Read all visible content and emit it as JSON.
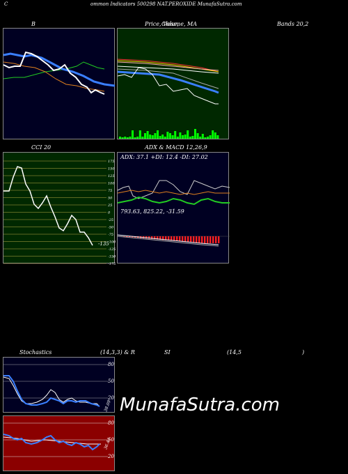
{
  "header": {
    "text": "ommon  Indicators 500298  NAT.PEROXIDE MunafaSutra.com",
    "c_mark": "C"
  },
  "titles": {
    "bollinger_b": "B",
    "price_volume_ma": "Price,  Volume,  MA",
    "price_overlap": "Close,",
    "bands": "Bands 20,2",
    "cci": "CCI 20",
    "adx_macd": "ADX  & MACD 12,26,9",
    "stoch_left": "Stochastics",
    "stoch_mid": "(14,3,3) & R",
    "stoch_si": "SI",
    "stoch_params": "(14,5",
    "stoch_close": ")"
  },
  "adx_readout": "ADX: 37.1  +DI: 12.4  -DI: 27.02",
  "macd_readout": "793.63,  825.22,  -31.59",
  "watermark": "MunafaSutra.com",
  "cci_ticks": [
    "175",
    "150",
    "125",
    "100",
    "75",
    "50",
    "25",
    "0",
    "-25",
    "-50",
    "-75",
    "-100",
    "-125",
    "-150",
    "-175"
  ],
  "cci_last": "-135",
  "stoch_ticks": [
    "80",
    "50",
    "20"
  ],
  "stoch_last": "38.09",
  "rsi_ticks": [
    "80",
    "50",
    "20"
  ],
  "rsi_last": "36.44",
  "colors": {
    "panel_navy": "#000022",
    "panel_green": "#002800",
    "rsi_red": "#8b0000",
    "volume_green": "#00ff00",
    "line_blue": "#3a7fff",
    "line_orange": "#e0801e",
    "line_green": "#22cc22"
  },
  "chart_data": [
    {
      "type": "line",
      "title": "B",
      "series": [
        {
          "values": [
            72,
            75,
            74,
            70,
            68,
            66,
            60,
            58,
            56,
            54,
            52,
            50,
            48,
            47,
            46,
            45
          ]
        },
        {
          "values": [
            80,
            82,
            83,
            82,
            80,
            78,
            70,
            64,
            58,
            55,
            53,
            51,
            50,
            49,
            48,
            47
          ]
        },
        {
          "values": [
            58,
            57,
            56,
            55,
            54,
            52,
            50,
            46,
            42,
            40,
            38,
            36,
            35,
            34,
            33,
            32
          ]
        },
        {
          "values": [
            62,
            60,
            65,
            80,
            84,
            75,
            72,
            60,
            57,
            56,
            50,
            46,
            44,
            38,
            35,
            36
          ]
        }
      ]
    },
    {
      "type": "bar",
      "title": "Volume",
      "values": [
        3,
        2,
        3,
        2,
        3,
        12,
        2,
        3,
        12,
        3,
        8,
        11,
        6,
        5,
        8,
        12,
        4,
        6,
        3,
        10,
        8,
        5,
        11,
        3,
        9,
        5,
        6,
        12,
        3,
        4,
        14,
        8,
        3,
        7,
        2,
        3,
        5,
        12,
        9,
        5
      ]
    },
    {
      "type": "line",
      "title": "CCI 20",
      "series": [
        {
          "values": [
            80,
            80,
            120,
            140,
            140,
            80,
            60,
            20,
            0,
            -10,
            10,
            50,
            20,
            -20,
            -40,
            -60,
            -40,
            -10,
            -100,
            -100,
            -135
          ]
        }
      ]
    },
    {
      "type": "line",
      "title": "ADX",
      "series": [
        {
          "values": [
            35,
            38,
            30,
            25,
            40,
            42,
            38,
            36,
            34,
            37,
            36,
            38,
            42,
            44,
            40,
            38,
            37,
            37
          ]
        },
        {
          "values": [
            15,
            16,
            20,
            22,
            18,
            16,
            12,
            14,
            16,
            20,
            18,
            14,
            12,
            12,
            13,
            12
          ]
        },
        {
          "values": [
            25,
            24,
            22,
            20,
            24,
            26,
            28,
            27,
            26,
            24,
            25,
            26,
            28,
            27,
            27,
            27
          ]
        }
      ]
    },
    {
      "type": "line",
      "title": "Stochastics",
      "series": [
        {
          "values": [
            85,
            80,
            62,
            40,
            25,
            20,
            22,
            20,
            25,
            30,
            45,
            58,
            52,
            38,
            44,
            45,
            40,
            35,
            32,
            31,
            33,
            38
          ]
        },
        {
          "values": [
            80,
            75,
            60,
            45,
            30,
            22,
            20,
            21,
            22,
            27,
            35,
            45,
            48,
            42,
            40,
            41,
            38,
            36,
            34,
            33,
            33,
            34
          ]
        }
      ]
    },
    {
      "type": "line",
      "title": "RSI",
      "series": [
        {
          "values": [
            52,
            50,
            48,
            44,
            43,
            45,
            42,
            40,
            41,
            43,
            45,
            46,
            48,
            44,
            42,
            40,
            38,
            36,
            35,
            38,
            37,
            36
          ]
        },
        {
          "values": [
            48,
            48,
            47,
            46,
            45,
            45,
            44,
            43,
            43,
            44,
            45,
            46,
            46,
            45,
            44,
            43,
            42,
            41,
            40,
            40,
            40,
            40
          ]
        }
      ]
    }
  ]
}
